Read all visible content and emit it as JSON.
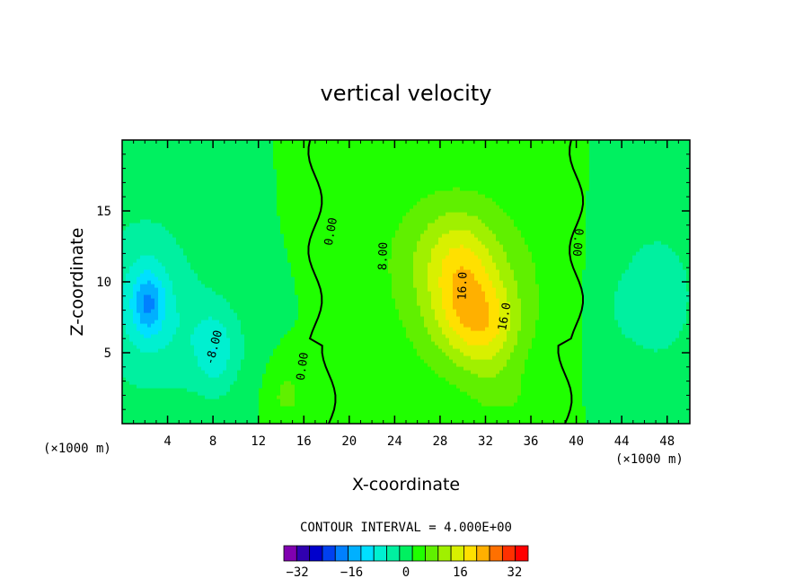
{
  "chart_data": {
    "type": "heatmap",
    "title": "vertical velocity",
    "xlabel": "X-coordinate",
    "ylabel": "Z-coordinate",
    "x_unit": "(×1000 m)",
    "y_unit": "",
    "xlim": [
      0,
      50
    ],
    "ylim": [
      0,
      20
    ],
    "x_ticks": [
      4,
      8,
      12,
      16,
      20,
      24,
      28,
      32,
      36,
      40,
      44,
      48
    ],
    "y_ticks": [
      5,
      10,
      15
    ],
    "contour_interval_text": "CONTOUR INTERVAL = 4.000E+00",
    "contour_interval": 4.0,
    "zero_contour_x": [
      17,
      40
    ],
    "contour_labels": [
      {
        "text": "0.00",
        "x": 18.7,
        "y": 13.5,
        "rotate": -80
      },
      {
        "text": "0.00",
        "x": 16.2,
        "y": 4.0,
        "rotate": -82
      },
      {
        "text": "8.00",
        "x": 23.3,
        "y": 11.8,
        "rotate": -88
      },
      {
        "text": "16.0",
        "x": 30.3,
        "y": 9.7,
        "rotate": -88
      },
      {
        "text": "16.0",
        "x": 34.0,
        "y": 7.5,
        "rotate": -80
      },
      {
        "text": "0.00",
        "x": 39.8,
        "y": 12.8,
        "rotate": 95
      },
      {
        "text": "-8.00",
        "x": 8.4,
        "y": 5.3,
        "rotate": -75
      }
    ],
    "field_features": [
      {
        "kind": "updraft",
        "x": 31,
        "z": 8,
        "peak": 20
      },
      {
        "kind": "updraft",
        "x": 29,
        "z": 11,
        "peak": 18
      },
      {
        "kind": "downdraft",
        "x": 2,
        "z": 8,
        "peak": -24
      },
      {
        "kind": "downdraft",
        "x": 8,
        "z": 5.5,
        "peak": -10
      },
      {
        "kind": "downdraft",
        "x": 47,
        "z": 9,
        "peak": -10
      }
    ],
    "colorbar": {
      "levels": [
        -36,
        -32,
        -28,
        -24,
        -20,
        -16,
        -12,
        -8,
        -4,
        0,
        4,
        8,
        12,
        16,
        20,
        24,
        28,
        32,
        36
      ],
      "tick_labels": [
        "−32",
        "−16",
        "0",
        "16",
        "32"
      ],
      "tick_values": [
        -32,
        -16,
        0,
        16,
        32
      ],
      "colors": [
        "#8000b0",
        "#3000b0",
        "#0000cc",
        "#0040f0",
        "#0080ff",
        "#00b0ff",
        "#00e0ff",
        "#00f0d0",
        "#00f0a0",
        "#00f060",
        "#20ff00",
        "#60f000",
        "#a0f000",
        "#d8f000",
        "#ffe000",
        "#ffb000",
        "#ff7000",
        "#ff3000",
        "#ff0000",
        "#ff5050",
        "#ff9090"
      ]
    }
  }
}
